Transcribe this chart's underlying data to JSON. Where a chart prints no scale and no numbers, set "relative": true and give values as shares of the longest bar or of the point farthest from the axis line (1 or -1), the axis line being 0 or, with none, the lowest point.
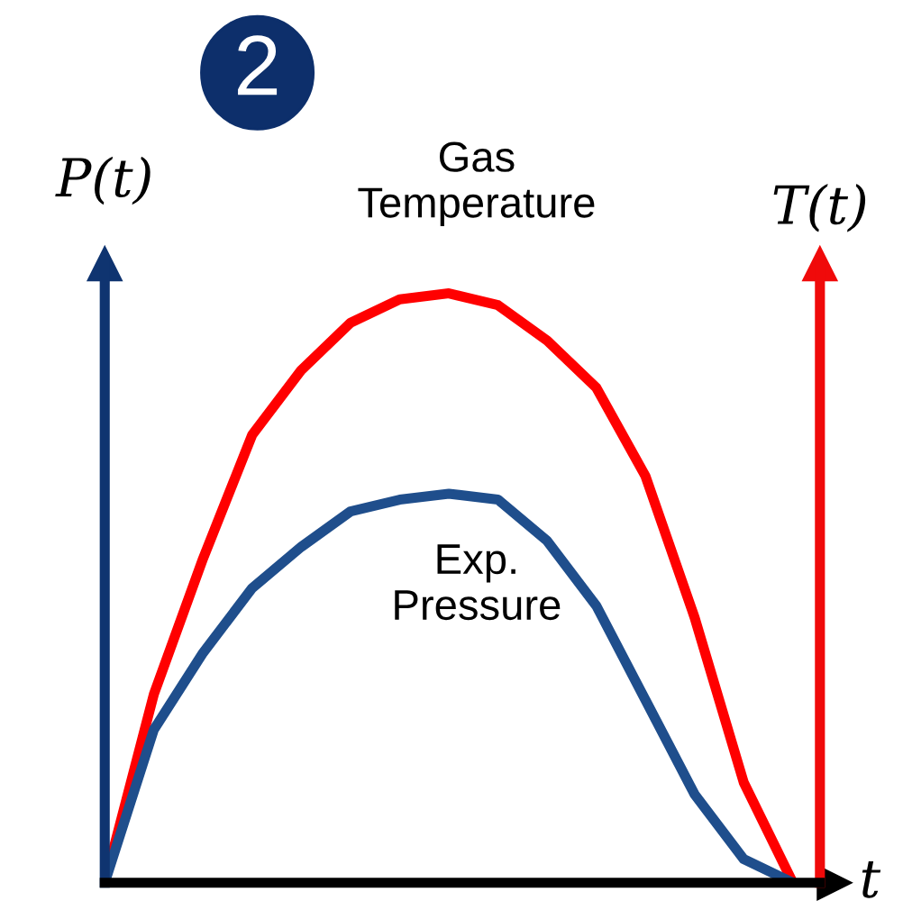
{
  "chart_data": {
    "type": "line",
    "relative": true,
    "xlabel": "t",
    "annotations": [
      "2",
      "P(t)",
      "T(t)"
    ],
    "legend": false,
    "marker": "none",
    "line_style": "solid",
    "categories": [
      null,
      null,
      null,
      null,
      null,
      null,
      null,
      null,
      null,
      null,
      null,
      null,
      null,
      null,
      null
    ],
    "series": [
      {
        "name": "Gas Temperature",
        "color": "#ff0000",
        "values": [
          0,
          0.32,
          0.55,
          0.76,
          0.87,
          0.95,
          0.99,
          1.0,
          0.98,
          0.92,
          0.84,
          0.69,
          0.45,
          0.17,
          0
        ]
      },
      {
        "name": "Exp. Pressure",
        "color": "#1f4e8c",
        "values": [
          0,
          0.26,
          0.39,
          0.5,
          0.57,
          0.63,
          0.65,
          0.66,
          0.65,
          0.58,
          0.47,
          0.31,
          0.15,
          0.04,
          0
        ]
      }
    ]
  }
}
